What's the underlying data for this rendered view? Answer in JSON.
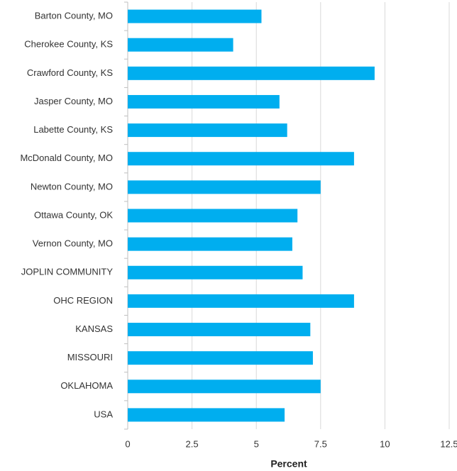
{
  "chart_data": {
    "type": "bar",
    "orientation": "horizontal",
    "x_label": "Percent",
    "categories": [
      "Barton County, MO",
      "Cherokee County, KS",
      "Crawford County, KS",
      "Jasper County, MO",
      "Labette County, KS",
      "McDonald County, MO",
      "Newton County, MO",
      "Ottawa County, OK",
      "Vernon County, MO",
      "JOPLIN COMMUNITY",
      "OHC REGION",
      "KANSAS",
      "MISSOURI",
      "OKLAHOMA",
      "USA"
    ],
    "values": [
      5.2,
      4.1,
      9.6,
      5.9,
      6.2,
      8.8,
      7.5,
      6.6,
      6.4,
      6.8,
      8.8,
      7.1,
      7.2,
      7.5,
      6.1
    ],
    "color": "#00aeef",
    "xlim": [
      0,
      12.5
    ],
    "xticks": [
      0,
      2.5,
      5,
      7.5,
      10,
      12.5
    ],
    "grid": true
  }
}
